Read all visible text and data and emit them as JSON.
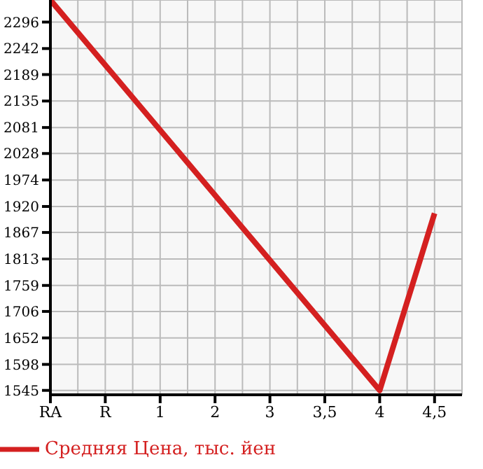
{
  "chart_data": {
    "type": "line",
    "categories": [
      "RA",
      "R",
      "1",
      "2",
      "3",
      "3,5",
      "4",
      "4,5"
    ],
    "series": [
      {
        "name": "Средняя Цена, тыс. йен",
        "color": "#d42020",
        "values": [
          2341,
          null,
          null,
          null,
          null,
          null,
          1545,
          1906
        ]
      }
    ],
    "ylim": [
      1536,
      2341
    ],
    "yticks": [
      1545,
      1598,
      1652,
      1706,
      1759,
      1813,
      1867,
      1920,
      1974,
      2028,
      2081,
      2135,
      2189,
      2242,
      2296
    ],
    "grid": true,
    "legend": "bottom left",
    "marker": "none"
  }
}
